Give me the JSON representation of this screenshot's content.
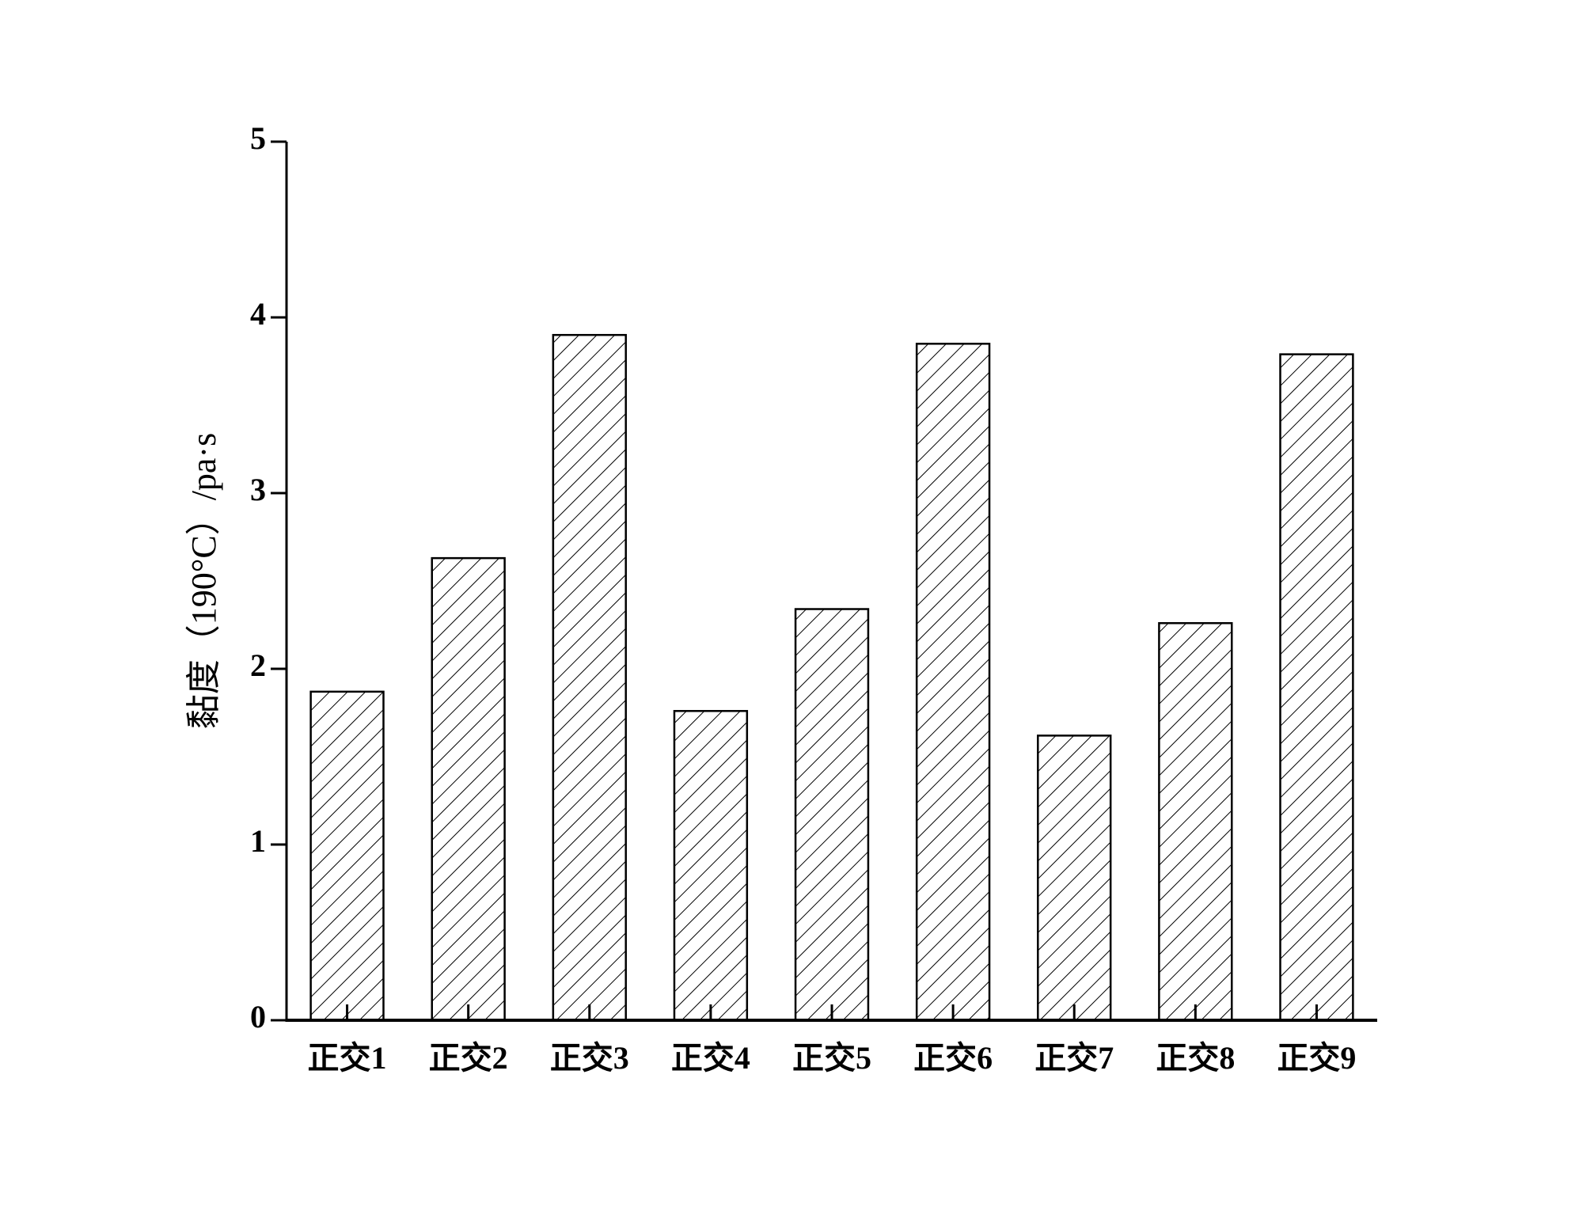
{
  "chart_data": {
    "type": "bar",
    "y_label": "黏度（190°C）/pa·s",
    "categories": [
      "正交1",
      "正交2",
      "正交3",
      "正交4",
      "正交5",
      "正交6",
      "正交7",
      "正交8",
      "正交9"
    ],
    "values": [
      1.87,
      2.63,
      3.9,
      1.76,
      2.34,
      3.85,
      1.62,
      2.26,
      3.79
    ],
    "color": "#000000",
    "ylim": [
      0,
      5
    ],
    "yticks": [
      0,
      1,
      2,
      3,
      4,
      5
    ],
    "grid": false
  }
}
